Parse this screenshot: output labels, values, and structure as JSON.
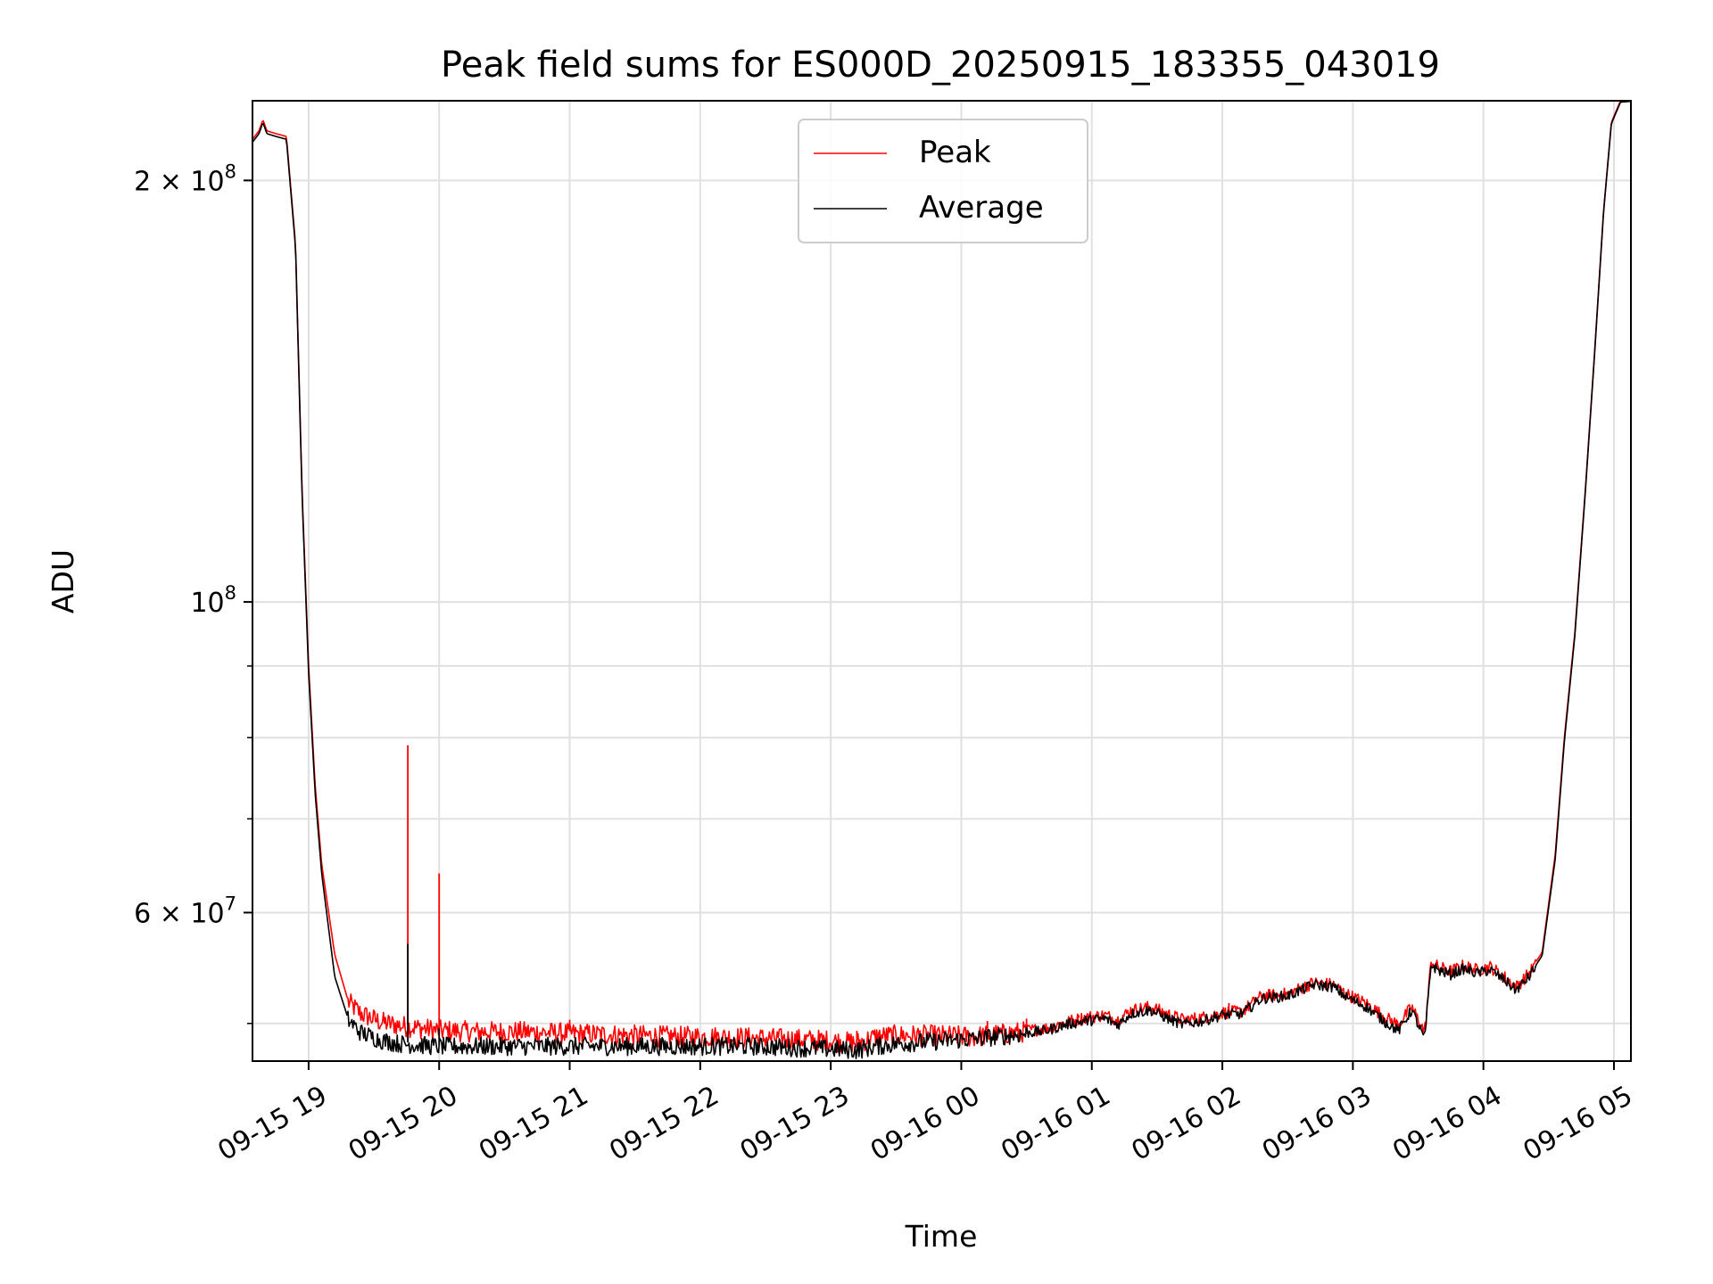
{
  "chart_data": {
    "type": "line",
    "title": "Peak field sums for ES000D_20250915_183355_043019",
    "xlabel": "Time",
    "ylabel": "ADU",
    "yscale": "log",
    "grid": true,
    "legend_position": "top-center",
    "x_unit": "hours since 09-15 18:00",
    "xlim": [
      18.57,
      29.13
    ],
    "ylim": [
      47000000,
      228000000
    ],
    "x_ticks": [
      {
        "value": 19,
        "label": "09-15 19"
      },
      {
        "value": 20,
        "label": "09-15 20"
      },
      {
        "value": 21,
        "label": "09-15 21"
      },
      {
        "value": 22,
        "label": "09-15 22"
      },
      {
        "value": 23,
        "label": "09-15 23"
      },
      {
        "value": 24,
        "label": "09-16 00"
      },
      {
        "value": 25,
        "label": "09-16 01"
      },
      {
        "value": 26,
        "label": "09-16 02"
      },
      {
        "value": 27,
        "label": "09-16 03"
      },
      {
        "value": 28,
        "label": "09-16 04"
      },
      {
        "value": 29,
        "label": "09-16 05"
      }
    ],
    "y_ticks_major": [
      {
        "value": 60000000,
        "mantissa": "6",
        "exp": "7"
      },
      {
        "value": 100000000,
        "mantissa": "",
        "exp": "8"
      },
      {
        "value": 200000000,
        "mantissa": "2",
        "exp": "8"
      }
    ],
    "y_ticks_minor": [
      50000000,
      70000000,
      80000000,
      90000000
    ],
    "times_sign": "×",
    "base": "10",
    "series": [
      {
        "name": "Peak",
        "color": "#ff0000",
        "x": [
          18.57,
          18.62,
          18.65,
          18.68,
          18.75,
          18.83,
          18.9,
          18.95,
          19.0,
          19.05,
          19.1,
          19.2,
          19.3,
          19.4,
          19.55,
          19.7,
          19.85,
          20.0,
          20.3,
          20.6,
          20.9,
          21.2,
          21.5,
          21.8,
          22.1,
          22.4,
          22.7,
          22.95,
          23.2,
          23.35,
          23.5,
          23.8,
          24.1,
          24.4,
          24.65,
          24.8,
          24.95,
          25.1,
          25.2,
          25.3,
          25.45,
          25.6,
          25.7,
          25.85,
          26.0,
          26.15,
          26.3,
          26.5,
          26.7,
          26.85,
          26.95,
          27.1,
          27.25,
          27.35,
          27.45,
          27.55,
          27.6,
          27.65,
          27.75,
          27.85,
          27.95,
          28.05,
          28.15,
          28.25,
          28.35,
          28.45,
          28.55,
          28.62,
          28.7,
          28.78,
          28.85,
          28.92,
          28.98,
          29.05,
          29.13
        ],
        "y": [
          214000000,
          217000000,
          221000000,
          217000000,
          216000000,
          215000000,
          180000000,
          120000000,
          90000000,
          74000000,
          65000000,
          56000000,
          52000000,
          51000000,
          50300000,
          50000000,
          49800000,
          49600000,
          49500000,
          49500000,
          49400000,
          49300000,
          49200000,
          49100000,
          49100000,
          49000000,
          48900000,
          48800000,
          48600000,
          49100000,
          49200000,
          49200000,
          49100000,
          49400000,
          49700000,
          50200000,
          50600000,
          50800000,
          50400000,
          51200000,
          51500000,
          50800000,
          50400000,
          50600000,
          51000000,
          51100000,
          52400000,
          52600000,
          53600000,
          53400000,
          52600000,
          51800000,
          50600000,
          50000000,
          51500000,
          49400000,
          55500000,
          55000000,
          54600000,
          55100000,
          54700000,
          55000000,
          54200000,
          53200000,
          54400000,
          56200000,
          66000000,
          80000000,
          95000000,
          120000000,
          150000000,
          190000000,
          220000000,
          228000000,
          228000000
        ],
        "spikes": [
          {
            "x": 19.76,
            "y": 79000000
          },
          {
            "x": 20.0,
            "y": 64000000
          },
          {
            "x": 21.0,
            "y": 50300000
          },
          {
            "x": 23.2,
            "y": 49400000
          },
          {
            "x": 24.2,
            "y": 50200000
          },
          {
            "x": 24.5,
            "y": 50400000
          },
          {
            "x": 24.9,
            "y": 50700000
          },
          {
            "x": 26.05,
            "y": 51700000
          }
        ]
      },
      {
        "name": "Average",
        "color": "#000000",
        "x": [
          18.57,
          18.62,
          18.65,
          18.68,
          18.75,
          18.83,
          18.9,
          18.95,
          19.0,
          19.05,
          19.1,
          19.2,
          19.3,
          19.4,
          19.55,
          19.7,
          19.85,
          20.0,
          20.3,
          20.6,
          20.9,
          21.2,
          21.5,
          21.8,
          22.1,
          22.4,
          22.7,
          22.95,
          23.2,
          23.35,
          23.5,
          23.8,
          24.1,
          24.4,
          24.65,
          24.8,
          24.95,
          25.1,
          25.2,
          25.3,
          25.45,
          25.6,
          25.7,
          25.85,
          26.0,
          26.15,
          26.3,
          26.5,
          26.7,
          26.85,
          26.95,
          27.1,
          27.25,
          27.35,
          27.45,
          27.55,
          27.6,
          27.65,
          27.75,
          27.85,
          27.95,
          28.05,
          28.15,
          28.25,
          28.35,
          28.45,
          28.55,
          28.62,
          28.7,
          28.78,
          28.85,
          28.92,
          28.98,
          29.05,
          29.13
        ],
        "y": [
          213000000,
          216000000,
          220000000,
          216000000,
          215000000,
          214000000,
          179000000,
          119000000,
          89000000,
          73000000,
          64000000,
          54000000,
          50500000,
          49400000,
          48800000,
          48500000,
          48400000,
          48300000,
          48300000,
          48300000,
          48300000,
          48300000,
          48300000,
          48300000,
          48300000,
          48300000,
          48200000,
          48100000,
          48000000,
          48300000,
          48500000,
          48700000,
          48900000,
          49200000,
          49500000,
          50000000,
          50300000,
          50500000,
          50000000,
          50900000,
          51200000,
          50400000,
          50000000,
          50300000,
          50800000,
          50900000,
          52200000,
          52400000,
          53400000,
          53200000,
          52300000,
          51500000,
          50200000,
          49500000,
          51200000,
          48800000,
          55200000,
          54700000,
          54300000,
          54800000,
          54400000,
          54700000,
          53900000,
          52900000,
          54100000,
          55900000,
          65500000,
          79500000,
          94500000,
          119500000,
          149500000,
          189500000,
          219500000,
          227500000,
          227800000
        ],
        "spikes": [
          {
            "x": 19.76,
            "y": 57000000
          },
          {
            "x": 20.0,
            "y": 49600000
          }
        ]
      }
    ]
  }
}
